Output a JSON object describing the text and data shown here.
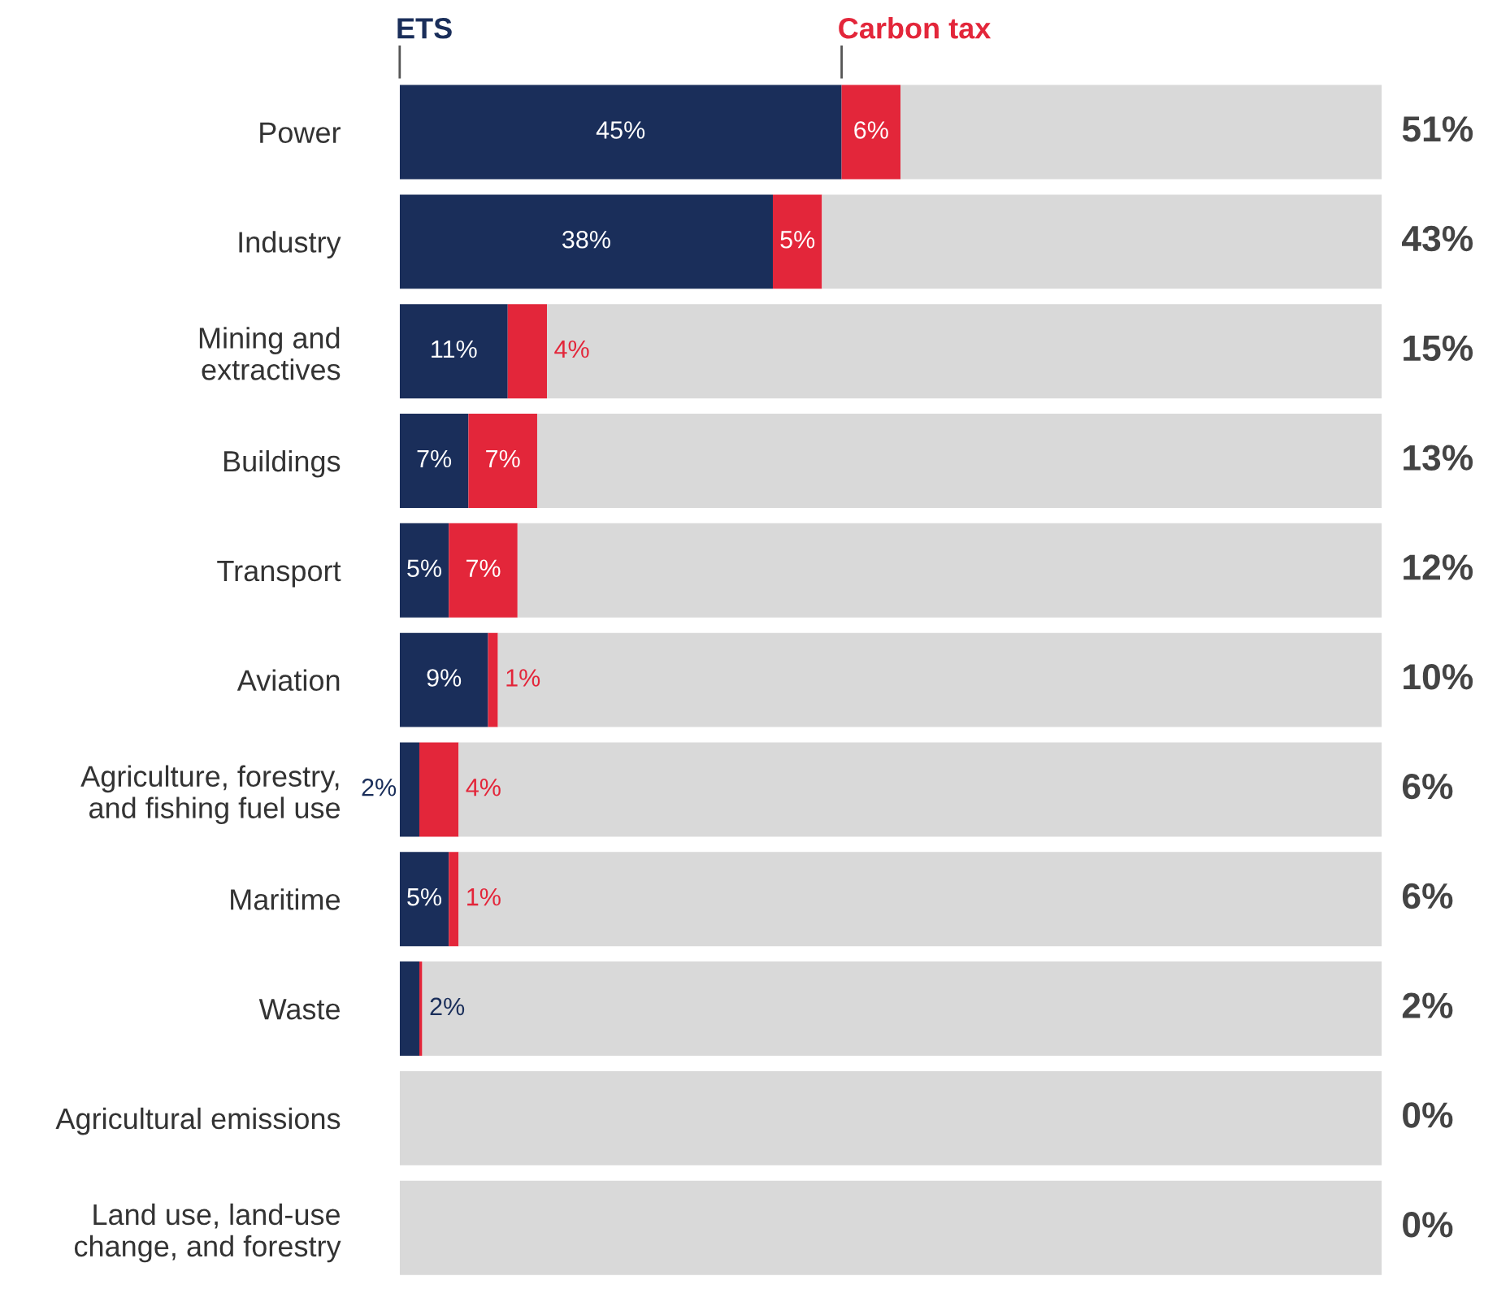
{
  "chart_data": {
    "type": "bar",
    "orientation": "horizontal",
    "stacked": true,
    "legend": "top",
    "categories": [
      "Power",
      "Industry",
      "Mining and\nextractives",
      "Buildings",
      "Transport",
      "Aviation",
      "Agriculture, forestry,\nand fishing fuel use",
      "Maritime",
      "Waste",
      "Agricultural emissions",
      "Land use, land-use\nchange, and forestry"
    ],
    "series": [
      {
        "name": "ETS",
        "color": "#1a2e5a",
        "values": [
          45,
          38,
          11,
          7,
          5,
          9,
          2,
          5,
          2,
          0,
          0
        ],
        "value_labels": [
          "45%",
          "38%",
          "11%",
          "7%",
          "5%",
          "9%",
          "2%",
          "5%",
          "2%",
          null,
          null
        ]
      },
      {
        "name": "Carbon tax",
        "color": "#e3263a",
        "values": [
          6,
          5,
          4,
          7,
          7,
          1,
          4,
          1,
          0.3,
          0,
          0
        ],
        "value_labels": [
          "6%",
          "5%",
          "4%",
          "7%",
          "7%",
          "1%",
          "4%",
          "1%",
          null,
          null,
          null
        ]
      },
      {
        "color": "#d9d9d9",
        "values": [
          49,
          57,
          85,
          86,
          88,
          90,
          94,
          94,
          97.7,
          100,
          100
        ]
      }
    ],
    "xlim": [
      0,
      100
    ],
    "tick_labels": "y",
    "annotations": [
      "51%",
      "43%",
      "15%",
      "13%",
      "12%",
      "10%",
      "6%",
      "6%",
      "2%",
      "0%",
      "0%"
    ]
  }
}
